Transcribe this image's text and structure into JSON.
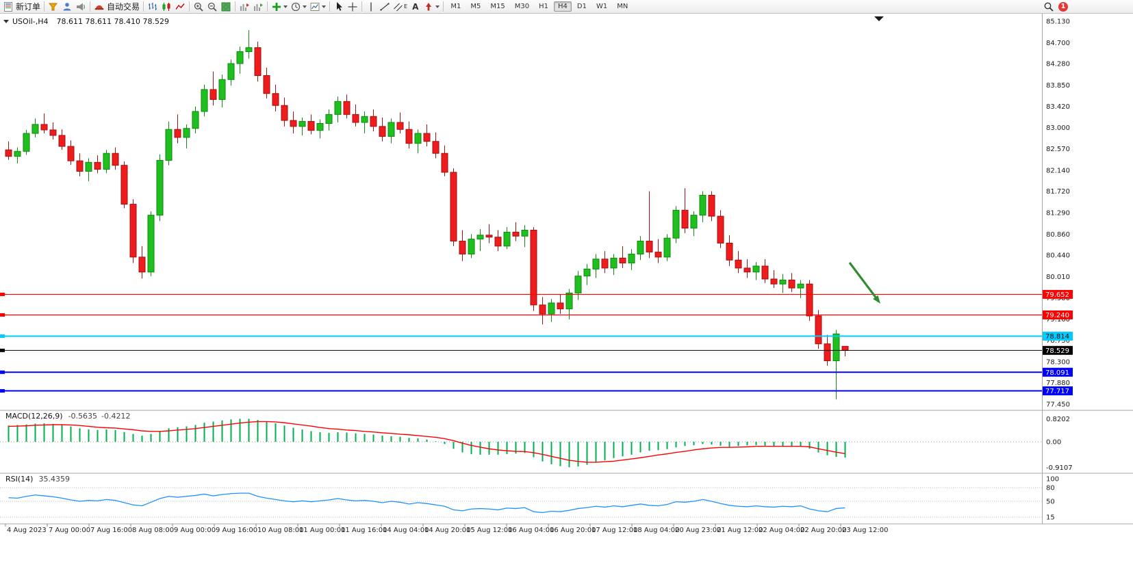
{
  "toolbar": {
    "new_order_label": "新订单",
    "auto_trading_label": "自动交易",
    "timeframes": [
      "M1",
      "M5",
      "M15",
      "M30",
      "H1",
      "H4",
      "D1",
      "W1",
      "MN"
    ],
    "active_timeframe": "H4",
    "text_tool_label": "A",
    "channel_label": "E",
    "notification_count": "1"
  },
  "chart": {
    "title_left": "USOil-,H4",
    "title_ohlc": "78.611 78.611 78.410 78.529",
    "symbol": "USOil-",
    "period": "H4",
    "open": "78.611",
    "high": "78.611",
    "low": "78.410",
    "close": "78.529"
  },
  "colors": {
    "up": "#1FBF1F",
    "up_stroke": "#0E8A0E",
    "down": "#EE1C1C",
    "down_stroke": "#A31111",
    "macd_hist": "#00B050",
    "macd_signal": "#FF0000",
    "rsi_line": "#1E90FF",
    "arrow": "#2E8B2E",
    "axis_text": "#1A1A1A",
    "separator": "#A6A6A6"
  },
  "price_axis": {
    "labels": [
      "85.130",
      "84.700",
      "84.280",
      "83.850",
      "83.420",
      "83.000",
      "82.570",
      "82.140",
      "81.720",
      "81.290",
      "80.860",
      "80.440",
      "80.010",
      "79.580",
      "79.160",
      "78.730",
      "78.300",
      "77.880",
      "77.450"
    ]
  },
  "hlines": [
    {
      "price": 79.652,
      "label": "79.652",
      "color": "#FF0000",
      "badge_text": "#FFFFFF",
      "width": 1.2
    },
    {
      "price": 79.24,
      "label": "79.240",
      "color": "#FF0000",
      "badge_text": "#FFFFFF",
      "width": 1.2
    },
    {
      "price": 78.814,
      "label": "78.814",
      "color": "#00CCFF",
      "badge_text": "#000000",
      "width": 2
    },
    {
      "price": 78.529,
      "label": "78.529",
      "color": "#000000",
      "badge_text": "#FFFFFF",
      "width": 1
    },
    {
      "price": 78.091,
      "label": "78.091",
      "color": "#0000FF",
      "badge_text": "#FFFFFF",
      "width": 2
    },
    {
      "price": 77.717,
      "label": "77.717",
      "color": "#0000FF",
      "badge_text": "#FFFFFF",
      "width": 2
    }
  ],
  "time_axis": {
    "labels": [
      "4 Aug 2023",
      "7 Aug 00:00",
      "7 Aug 16:00",
      "8 Aug 08:00",
      "9 Aug 00:00",
      "9 Aug 16:00",
      "10 Aug 08:00",
      "11 Aug 00:00",
      "11 Aug 16:00",
      "14 Aug 04:00",
      "14 Aug 20:00",
      "15 Aug 12:00",
      "16 Aug 04:00",
      "16 Aug 20:00",
      "17 Aug 12:00",
      "18 Aug 04:00",
      "20 Aug 23:00",
      "21 Aug 12:00",
      "22 Aug 04:00",
      "22 Aug 20:00",
      "23 Aug 12:00"
    ]
  },
  "macd_panel": {
    "name": "MACD(12,26,9)",
    "value_main": "-0.5635",
    "value_signal": "-0.4212",
    "axis": [
      {
        "label": "0.8202",
        "value": 0.8202
      },
      {
        "label": "0.00",
        "value": 0
      },
      {
        "label": "-0.9107",
        "value": -0.9107
      }
    ]
  },
  "rsi_panel": {
    "name": "RSI(14)",
    "value": "35.4359",
    "axis": [
      {
        "label": "100",
        "value": 100
      },
      {
        "label": "80",
        "value": 80
      },
      {
        "label": "50",
        "value": 50
      },
      {
        "label": "15",
        "value": 15
      }
    ],
    "levels": [
      80,
      50,
      15
    ]
  },
  "chart_data": {
    "type": "candlestick",
    "symbol": "USOil-",
    "timeframe": "H4",
    "price_range": [
      77.45,
      85.13
    ],
    "candles": [
      [
        82.55,
        82.72,
        82.35,
        82.42
      ],
      [
        82.42,
        82.6,
        82.28,
        82.52
      ],
      [
        82.52,
        82.95,
        82.45,
        82.88
      ],
      [
        82.88,
        83.18,
        82.8,
        83.06
      ],
      [
        83.06,
        83.28,
        82.88,
        82.95
      ],
      [
        82.95,
        83.1,
        82.76,
        82.84
      ],
      [
        82.84,
        82.96,
        82.55,
        82.62
      ],
      [
        82.62,
        82.74,
        82.25,
        82.33
      ],
      [
        82.33,
        82.48,
        82.02,
        82.12
      ],
      [
        82.12,
        82.38,
        81.92,
        82.3
      ],
      [
        82.3,
        82.44,
        82.08,
        82.16
      ],
      [
        82.16,
        82.55,
        82.08,
        82.48
      ],
      [
        82.48,
        82.6,
        82.15,
        82.24
      ],
      [
        82.24,
        82.32,
        81.38,
        81.46
      ],
      [
        81.46,
        81.56,
        80.28,
        80.4
      ],
      [
        80.4,
        80.62,
        79.97,
        80.1
      ],
      [
        80.1,
        81.32,
        80.02,
        81.24
      ],
      [
        81.24,
        82.46,
        81.12,
        82.34
      ],
      [
        82.34,
        83.12,
        82.24,
        82.96
      ],
      [
        82.96,
        83.26,
        82.68,
        82.8
      ],
      [
        82.8,
        83.06,
        82.58,
        82.98
      ],
      [
        82.98,
        83.42,
        82.88,
        83.32
      ],
      [
        83.32,
        83.86,
        83.22,
        83.76
      ],
      [
        83.76,
        84.12,
        83.44,
        83.56
      ],
      [
        83.56,
        84.06,
        83.4,
        83.96
      ],
      [
        83.96,
        84.36,
        83.84,
        84.28
      ],
      [
        84.28,
        84.62,
        84.08,
        84.52
      ],
      [
        84.52,
        84.95,
        84.38,
        84.6
      ],
      [
        84.6,
        84.72,
        83.92,
        84.04
      ],
      [
        84.04,
        84.2,
        83.58,
        83.68
      ],
      [
        83.68,
        83.86,
        83.32,
        83.44
      ],
      [
        83.44,
        83.6,
        83.02,
        83.14
      ],
      [
        83.14,
        83.32,
        82.88,
        83.02
      ],
      [
        83.02,
        83.2,
        82.84,
        83.12
      ],
      [
        83.12,
        83.26,
        82.86,
        82.94
      ],
      [
        82.94,
        83.16,
        82.78,
        83.08
      ],
      [
        83.08,
        83.36,
        82.94,
        83.26
      ],
      [
        83.26,
        83.62,
        83.1,
        83.52
      ],
      [
        83.52,
        83.66,
        83.18,
        83.26
      ],
      [
        83.26,
        83.46,
        83.02,
        83.1
      ],
      [
        83.1,
        83.32,
        82.88,
        83.22
      ],
      [
        83.22,
        83.36,
        82.92,
        83.02
      ],
      [
        83.02,
        83.2,
        82.72,
        82.82
      ],
      [
        82.82,
        83.18,
        82.68,
        83.1
      ],
      [
        83.1,
        83.3,
        82.88,
        82.96
      ],
      [
        82.96,
        83.12,
        82.58,
        82.68
      ],
      [
        82.68,
        82.96,
        82.48,
        82.88
      ],
      [
        82.88,
        83.06,
        82.62,
        82.72
      ],
      [
        82.72,
        82.9,
        82.38,
        82.48
      ],
      [
        82.48,
        82.64,
        82.02,
        82.1
      ],
      [
        82.1,
        82.18,
        80.62,
        80.72
      ],
      [
        80.72,
        80.94,
        80.32,
        80.46
      ],
      [
        80.46,
        80.86,
        80.38,
        80.76
      ],
      [
        80.76,
        80.96,
        80.52,
        80.84
      ],
      [
        80.84,
        81.06,
        80.68,
        80.8
      ],
      [
        80.8,
        80.94,
        80.52,
        80.62
      ],
      [
        80.62,
        81.0,
        80.56,
        80.9
      ],
      [
        80.9,
        81.1,
        80.72,
        80.82
      ],
      [
        80.82,
        81.04,
        80.6,
        80.94
      ],
      [
        80.94,
        81.0,
        79.32,
        79.44
      ],
      [
        79.44,
        79.6,
        79.05,
        79.26
      ],
      [
        79.26,
        79.56,
        79.1,
        79.48
      ],
      [
        79.48,
        79.66,
        79.26,
        79.36
      ],
      [
        79.36,
        79.76,
        79.15,
        79.68
      ],
      [
        79.68,
        80.12,
        79.54,
        80.02
      ],
      [
        80.02,
        80.26,
        79.84,
        80.16
      ],
      [
        80.16,
        80.46,
        79.98,
        80.36
      ],
      [
        80.36,
        80.52,
        80.08,
        80.18
      ],
      [
        80.18,
        80.46,
        80.04,
        80.38
      ],
      [
        80.38,
        80.62,
        80.18,
        80.28
      ],
      [
        80.28,
        80.56,
        80.14,
        80.46
      ],
      [
        80.46,
        80.82,
        80.34,
        80.72
      ],
      [
        80.72,
        81.72,
        80.38,
        80.5
      ],
      [
        80.5,
        80.76,
        80.28,
        80.4
      ],
      [
        80.4,
        80.86,
        80.32,
        80.78
      ],
      [
        80.78,
        81.42,
        80.68,
        81.34
      ],
      [
        81.34,
        81.78,
        80.88,
        80.98
      ],
      [
        80.98,
        81.32,
        80.82,
        81.24
      ],
      [
        81.24,
        81.72,
        81.1,
        81.64
      ],
      [
        81.64,
        81.72,
        81.12,
        81.22
      ],
      [
        81.22,
        81.34,
        80.58,
        80.68
      ],
      [
        80.68,
        80.84,
        80.22,
        80.34
      ],
      [
        80.34,
        80.52,
        80.08,
        80.18
      ],
      [
        80.18,
        80.36,
        79.98,
        80.1
      ],
      [
        80.1,
        80.3,
        79.94,
        80.22
      ],
      [
        80.22,
        80.36,
        79.88,
        79.96
      ],
      [
        79.96,
        80.14,
        79.78,
        79.86
      ],
      [
        79.86,
        80.06,
        79.68,
        79.94
      ],
      [
        79.94,
        80.08,
        79.7,
        79.78
      ],
      [
        79.78,
        79.94,
        79.58,
        79.86
      ],
      [
        79.86,
        79.94,
        79.12,
        79.22
      ],
      [
        79.22,
        79.34,
        78.56,
        78.66
      ],
      [
        78.66,
        78.84,
        78.22,
        78.32
      ],
      [
        78.32,
        78.94,
        77.55,
        78.86
      ],
      [
        78.611,
        78.611,
        78.41,
        78.529
      ]
    ],
    "indicators": {
      "macd": {
        "params": "12,26,9",
        "range": [
          -0.9107,
          0.8202
        ],
        "histogram": [
          0.58,
          0.6,
          0.62,
          0.65,
          0.66,
          0.64,
          0.6,
          0.55,
          0.48,
          0.44,
          0.42,
          0.44,
          0.42,
          0.35,
          0.28,
          0.22,
          0.28,
          0.38,
          0.48,
          0.52,
          0.55,
          0.6,
          0.68,
          0.72,
          0.76,
          0.8,
          0.82,
          0.82,
          0.78,
          0.72,
          0.66,
          0.58,
          0.5,
          0.44,
          0.38,
          0.34,
          0.32,
          0.34,
          0.33,
          0.3,
          0.28,
          0.26,
          0.22,
          0.2,
          0.18,
          0.14,
          0.12,
          0.08,
          0.02,
          -0.08,
          -0.25,
          -0.38,
          -0.44,
          -0.46,
          -0.46,
          -0.46,
          -0.44,
          -0.42,
          -0.4,
          -0.55,
          -0.7,
          -0.8,
          -0.87,
          -0.91,
          -0.88,
          -0.82,
          -0.74,
          -0.66,
          -0.58,
          -0.52,
          -0.46,
          -0.38,
          -0.32,
          -0.3,
          -0.26,
          -0.2,
          -0.15,
          -0.12,
          -0.08,
          -0.1,
          -0.14,
          -0.18,
          -0.15,
          -0.13,
          -0.12,
          -0.14,
          -0.16,
          -0.17,
          -0.16,
          -0.15,
          -0.25,
          -0.38,
          -0.48,
          -0.54,
          -0.5635
        ],
        "signal": [
          0.55,
          0.56,
          0.57,
          0.59,
          0.6,
          0.61,
          0.61,
          0.6,
          0.58,
          0.55,
          0.52,
          0.5,
          0.49,
          0.46,
          0.43,
          0.39,
          0.37,
          0.37,
          0.39,
          0.42,
          0.44,
          0.47,
          0.51,
          0.55,
          0.59,
          0.63,
          0.67,
          0.7,
          0.72,
          0.72,
          0.71,
          0.68,
          0.64,
          0.6,
          0.56,
          0.51,
          0.47,
          0.45,
          0.42,
          0.4,
          0.37,
          0.35,
          0.32,
          0.3,
          0.27,
          0.25,
          0.22,
          0.19,
          0.16,
          0.11,
          0.04,
          -0.05,
          -0.13,
          -0.19,
          -0.25,
          -0.29,
          -0.32,
          -0.34,
          -0.35,
          -0.39,
          -0.45,
          -0.52,
          -0.59,
          -0.66,
          -0.7,
          -0.73,
          -0.73,
          -0.71,
          -0.69,
          -0.65,
          -0.61,
          -0.57,
          -0.52,
          -0.47,
          -0.43,
          -0.38,
          -0.34,
          -0.29,
          -0.25,
          -0.22,
          -0.2,
          -0.2,
          -0.19,
          -0.18,
          -0.16,
          -0.16,
          -0.16,
          -0.16,
          -0.16,
          -0.16,
          -0.18,
          -0.25,
          -0.31,
          -0.37,
          -0.4212
        ]
      },
      "rsi": {
        "params": "14",
        "range": [
          0,
          100
        ],
        "values": [
          58,
          57,
          61,
          64,
          62,
          60,
          57,
          53,
          50,
          52,
          51,
          54,
          52,
          47,
          42,
          40,
          48,
          56,
          61,
          59,
          61,
          63,
          66,
          62,
          65,
          67,
          68,
          68,
          61,
          57,
          54,
          51,
          49,
          51,
          49,
          51,
          53,
          56,
          53,
          51,
          52,
          50,
          47,
          50,
          48,
          44,
          47,
          45,
          42,
          39,
          31,
          29,
          33,
          34,
          33,
          31,
          35,
          34,
          36,
          27,
          25,
          28,
          27,
          30,
          34,
          36,
          39,
          37,
          40,
          38,
          41,
          44,
          41,
          40,
          43,
          49,
          48,
          50,
          54,
          50,
          45,
          41,
          39,
          38,
          40,
          38,
          37,
          39,
          38,
          40,
          33,
          29,
          27,
          34,
          35.4
        ]
      }
    }
  }
}
